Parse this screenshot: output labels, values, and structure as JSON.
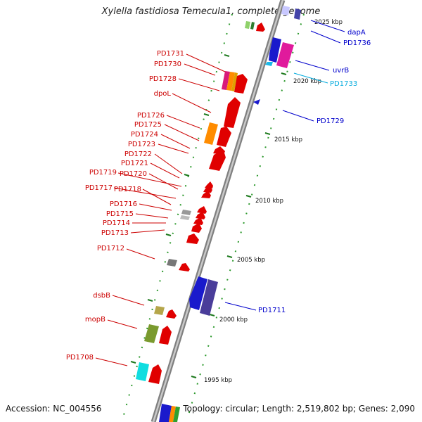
{
  "title": "Xylella fastidiosa Temecula1, complete genome",
  "footer": {
    "accession": "Accession: NC_004556",
    "summary": "Topology: circular; Length: 2,519,802 bp; Genes: 2,090"
  },
  "scale_ticks": [
    "2025 kbp",
    "2020 kbp",
    "2015 kbp",
    "2010 kbp",
    "2005 kbp",
    "2000 kbp",
    "1995 kbp"
  ],
  "genes_left": [
    {
      "name": "PD1731",
      "color": "#cc0000"
    },
    {
      "name": "PD1730",
      "color": "#cc0000"
    },
    {
      "name": "PD1728",
      "color": "#cc0000"
    },
    {
      "name": "dpoL",
      "color": "#cc0000"
    },
    {
      "name": "PD1726",
      "color": "#cc0000"
    },
    {
      "name": "PD1725",
      "color": "#cc0000"
    },
    {
      "name": "PD1724",
      "color": "#cc0000"
    },
    {
      "name": "PD1723",
      "color": "#cc0000"
    },
    {
      "name": "PD1722",
      "color": "#cc0000"
    },
    {
      "name": "PD1721",
      "color": "#cc0000"
    },
    {
      "name": "PD1719",
      "color": "#cc0000"
    },
    {
      "name": "PD1720",
      "color": "#cc0000"
    },
    {
      "name": "PD1717",
      "color": "#cc0000"
    },
    {
      "name": "PD1718",
      "color": "#cc0000"
    },
    {
      "name": "PD1716",
      "color": "#cc0000"
    },
    {
      "name": "PD1715",
      "color": "#cc0000"
    },
    {
      "name": "PD1714",
      "color": "#cc0000"
    },
    {
      "name": "PD1713",
      "color": "#cc0000"
    },
    {
      "name": "PD1712",
      "color": "#cc0000"
    },
    {
      "name": "dsbB",
      "color": "#cc0000"
    },
    {
      "name": "mopB",
      "color": "#cc0000"
    },
    {
      "name": "PD1708",
      "color": "#cc0000"
    }
  ],
  "genes_right": [
    {
      "name": "dapA",
      "color": "#0000cc"
    },
    {
      "name": "PD1736",
      "color": "#0000cc"
    },
    {
      "name": "uvrB",
      "color": "#0000cc"
    },
    {
      "name": "PD1733",
      "color": "#00aadd"
    },
    {
      "name": "PD1729",
      "color": "#0000cc"
    },
    {
      "name": "PD1711",
      "color": "#0000cc"
    }
  ]
}
